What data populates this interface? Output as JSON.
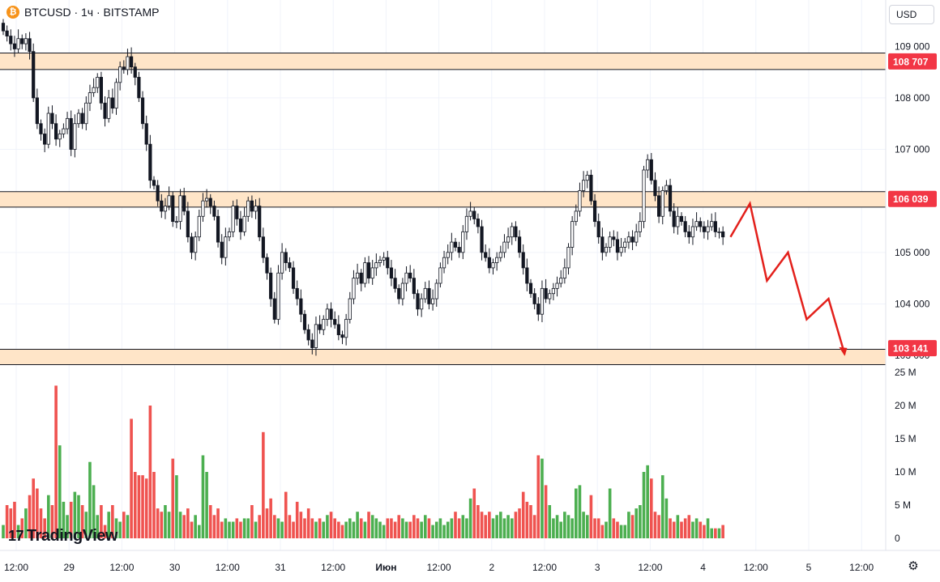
{
  "header": {
    "symbol_icon": "bitcoin-icon",
    "title": "BTCUSD · 1ч · BITSTAMP"
  },
  "currency_button": {
    "label": "USD"
  },
  "logo": {
    "mark": "17",
    "text": "TradingView"
  },
  "settings": {
    "icon": "gear-icon",
    "glyph": "⚙"
  },
  "chart_data": {
    "type": "candlestick",
    "price_axis": {
      "ticks": [
        {
          "value": 104000,
          "label": "104 000"
        },
        {
          "value": 105000,
          "label": "105 000"
        },
        {
          "value": 107000,
          "label": "107 000"
        },
        {
          "value": 108000,
          "label": "108 000"
        }
      ],
      "ylim": [
        102750,
        109900
      ],
      "partial_labels": [
        "109 000",
        "103 000"
      ]
    },
    "price_labels": [
      {
        "value": 108707,
        "label": "108 707",
        "color": "#f23645"
      },
      {
        "value": 106039,
        "label": "106 039",
        "color": "#f23645"
      },
      {
        "value": 103141,
        "label": "103 141",
        "color": "#f23645"
      }
    ],
    "zones": [
      {
        "from": 108550,
        "to": 108870
      },
      {
        "from": 105880,
        "to": 106180
      },
      {
        "from": 102820,
        "to": 103120
      }
    ],
    "time_axis": [
      {
        "label": "12:00",
        "kind": "time"
      },
      {
        "label": "29",
        "kind": "date"
      },
      {
        "label": "12:00",
        "kind": "time"
      },
      {
        "label": "30",
        "kind": "date"
      },
      {
        "label": "12:00",
        "kind": "time"
      },
      {
        "label": "31",
        "kind": "date"
      },
      {
        "label": "12:00",
        "kind": "time"
      },
      {
        "label": "Июн",
        "kind": "month"
      },
      {
        "label": "12:00",
        "kind": "time"
      },
      {
        "label": "2",
        "kind": "date"
      },
      {
        "label": "12:00",
        "kind": "time"
      },
      {
        "label": "3",
        "kind": "date"
      },
      {
        "label": "12:00",
        "kind": "time"
      },
      {
        "label": "4",
        "kind": "date"
      },
      {
        "label": "12:00",
        "kind": "time"
      },
      {
        "label": "5",
        "kind": "date"
      },
      {
        "label": "12:00",
        "kind": "time"
      }
    ],
    "volume_axis": {
      "ticks": [
        "0",
        "5 M",
        "10 M",
        "15 M",
        "20 M",
        "25 M"
      ],
      "max": 25
    },
    "closes": [
      109300,
      109200,
      109050,
      108950,
      109150,
      109050,
      109150,
      108900,
      108000,
      107500,
      107300,
      107100,
      107700,
      107500,
      107200,
      107300,
      107400,
      107600,
      107000,
      107500,
      107700,
      107500,
      107900,
      108100,
      108200,
      108400,
      107900,
      107600,
      108000,
      107800,
      108300,
      108600,
      108550,
      108800,
      108600,
      108400,
      108000,
      107500,
      107100,
      106400,
      106300,
      106000,
      105800,
      105900,
      106100,
      105600,
      105600,
      106100,
      105800,
      105300,
      105000,
      105300,
      105700,
      106000,
      106050,
      105900,
      105700,
      105200,
      104900,
      105300,
      105400,
      105900,
      105650,
      105400,
      105700,
      106000,
      105800,
      105900,
      105300,
      104900,
      104600,
      104100,
      103700,
      104600,
      105000,
      104800,
      104700,
      104300,
      104100,
      103800,
      103500,
      103300,
      103150,
      103600,
      103500,
      103700,
      103900,
      103700,
      103600,
      103400,
      103350,
      103700,
      104100,
      104500,
      104600,
      104400,
      104800,
      104500,
      104700,
      104800,
      104850,
      104900,
      104700,
      104500,
      104300,
      104100,
      104400,
      104600,
      104500,
      104200,
      103900,
      104100,
      104300,
      104000,
      104100,
      104400,
      104700,
      104900,
      105000,
      105200,
      105100,
      105000,
      105400,
      105700,
      105800,
      105650,
      105500,
      105000,
      104900,
      104700,
      104800,
      104900,
      105000,
      105200,
      105300,
      105500,
      105300,
      105000,
      104700,
      104400,
      104200,
      104000,
      103800,
      104300,
      104100,
      104200,
      104300,
      104400,
      104500,
      104700,
      105100,
      105600,
      105800,
      106200,
      106400,
      106500,
      106000,
      105600,
      105300,
      105000,
      105100,
      105300,
      105250,
      105000,
      105100,
      105200,
      105300,
      105200,
      105400,
      105600,
      106600,
      106800,
      106400,
      106100,
      105700,
      106200,
      106300,
      105800,
      105500,
      105700,
      105600,
      105400,
      105300,
      105500,
      105600,
      105500,
      105400,
      105500,
      105600,
      105400,
      105400,
      105300
    ],
    "volumes": [
      2.0,
      5.0,
      4.5,
      5.5,
      2.0,
      3.0,
      4.5,
      6.5,
      9.0,
      7.5,
      4.5,
      3.0,
      6.5,
      5.0,
      23.0,
      14.0,
      5.5,
      3.5,
      5.5,
      7.0,
      6.5,
      5.0,
      4.0,
      11.5,
      8.0,
      3.5,
      5.0,
      2.0,
      4.0,
      5.0,
      3.0,
      2.5,
      4.0,
      3.5,
      18.0,
      10.0,
      9.5,
      9.5,
      9.0,
      20.0,
      10.0,
      4.5,
      4.0,
      5.0,
      4.0,
      12.0,
      9.5,
      4.0,
      3.5,
      4.5,
      2.5,
      3.5,
      2.0,
      12.5,
      10.0,
      5.0,
      3.5,
      4.5,
      2.5,
      3.0,
      2.5,
      2.5,
      3.0,
      2.5,
      3.0,
      3.0,
      5.0,
      2.5,
      3.5,
      16.0,
      4.5,
      6.0,
      3.5,
      3.0,
      2.5,
      7.0,
      3.5,
      2.5,
      5.5,
      4.0,
      3.0,
      4.5,
      3.0,
      2.5,
      3.0,
      2.5,
      3.5,
      4.0,
      3.0,
      2.5,
      2.0,
      2.5,
      3.0,
      2.5,
      4.0,
      3.0,
      2.5,
      4.0,
      3.5,
      3.0,
      2.5,
      2.0,
      3.0,
      3.0,
      2.5,
      3.5,
      3.0,
      2.5,
      2.5,
      3.5,
      3.0,
      2.5,
      3.5,
      3.0,
      2.0,
      2.5,
      3.0,
      2.0,
      2.5,
      3.0,
      4.0,
      3.0,
      3.5,
      3.0,
      6.0,
      7.5,
      5.0,
      4.0,
      3.5,
      4.0,
      3.0,
      3.5,
      4.0,
      3.0,
      3.5,
      3.0,
      4.0,
      4.5,
      7.0,
      5.5,
      5.0,
      3.5,
      12.5,
      12.0,
      8.0,
      5.0,
      3.0,
      3.5,
      2.5,
      4.0,
      3.5,
      3.0,
      7.5,
      8.0,
      4.0,
      3.5,
      6.5,
      3.0,
      3.0,
      2.0,
      2.5,
      7.5,
      3.0,
      2.5,
      2.0,
      2.0,
      4.0,
      3.5,
      4.5,
      5.0,
      10.0,
      11.0,
      9.0,
      4.0,
      3.5,
      9.5,
      6.0,
      3.0,
      2.5,
      3.5,
      2.5,
      3.0,
      3.5,
      2.5,
      3.0,
      2.5,
      2.0,
      3.0,
      1.5,
      1.5,
      1.5,
      2.0
    ],
    "forecast_path": [
      105300,
      105950,
      104450,
      105000,
      103700,
      104100,
      103020
    ],
    "forecast_color": "#e3201b",
    "up_color": "#089981",
    "down_color": "#f23645",
    "volume_up_color": "#4caf50",
    "volume_down_color": "#ef5350",
    "zone_fill": "#ffe5c8"
  }
}
